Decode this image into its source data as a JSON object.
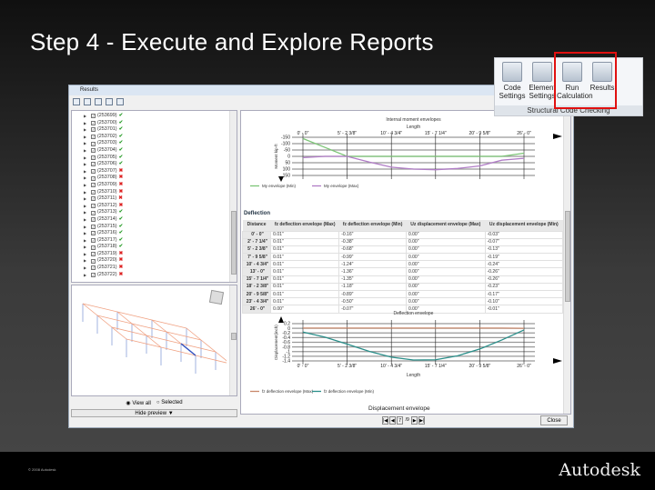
{
  "slide": {
    "title": "Step  4 -  Execute and Explore Reports",
    "copyright": "© 2008 Autodesk",
    "logo": "Autodesk"
  },
  "ribbon": {
    "buttons": [
      {
        "label": "Code Settings"
      },
      {
        "label": "Element Settings"
      },
      {
        "label": "Run Calculation",
        "highlighted": true
      },
      {
        "label": "Results",
        "highlighted": true
      }
    ],
    "group": "Structural Code Checking",
    "highlight_color": "#e01010"
  },
  "window": {
    "title": "Results",
    "close_label": "Close",
    "page_current": "7",
    "page_total": "/9",
    "tree": [
      {
        "id": "(253699)",
        "ok": true
      },
      {
        "id": "(253700)",
        "ok": true
      },
      {
        "id": "(253701)",
        "ok": true
      },
      {
        "id": "(253702)",
        "ok": true
      },
      {
        "id": "(253703)",
        "ok": true
      },
      {
        "id": "(253704)",
        "ok": true
      },
      {
        "id": "(253705)",
        "ok": true
      },
      {
        "id": "(253706)",
        "ok": true
      },
      {
        "id": "(253707)",
        "ok": false
      },
      {
        "id": "(253708)",
        "ok": false
      },
      {
        "id": "(253709)",
        "ok": false
      },
      {
        "id": "(253710)",
        "ok": false
      },
      {
        "id": "(253711)",
        "ok": false
      },
      {
        "id": "(253712)",
        "ok": false
      },
      {
        "id": "(253713)",
        "ok": true
      },
      {
        "id": "(253714)",
        "ok": true
      },
      {
        "id": "(253715)",
        "ok": true
      },
      {
        "id": "(253716)",
        "ok": true
      },
      {
        "id": "(253717)",
        "ok": true
      },
      {
        "id": "(253718)",
        "ok": true
      },
      {
        "id": "(253719)",
        "ok": false
      },
      {
        "id": "(253720)",
        "ok": false
      },
      {
        "id": "(253721)",
        "ok": false
      },
      {
        "id": "(253722)",
        "ok": false
      }
    ],
    "view_all": "View all",
    "selected": "Selected",
    "hide_preview": "Hide preview ▼",
    "deflection_heading": "Deflection",
    "next_section": "Displacement envelope",
    "table": {
      "headers": [
        "Distance",
        "fz deflection envelope (Max)",
        "fz deflection envelope (Min)",
        "Uz displacement envelope (Max)",
        "Uz displacement envelope (Min)"
      ],
      "rows": [
        [
          "0' - 0\"",
          "0.01\"",
          "-0.16\"",
          "0.00\"",
          "-0.03\""
        ],
        [
          "2' - 7 1/4\"",
          "0.01\"",
          "-0.38\"",
          "0.00\"",
          "-0.07\""
        ],
        [
          "5' - 2 3/8\"",
          "0.01\"",
          "-0.68\"",
          "0.00\"",
          "-0.13\""
        ],
        [
          "7' - 9 5/8\"",
          "0.01\"",
          "-0.99\"",
          "0.00\"",
          "-0.19\""
        ],
        [
          "10' - 4 3/4\"",
          "0.01\"",
          "-1.24\"",
          "0.00\"",
          "-0.24\""
        ],
        [
          "13' - 0\"",
          "0.01\"",
          "-1.36\"",
          "0.00\"",
          "-0.26\""
        ],
        [
          "15' - 7 1/4\"",
          "0.01\"",
          "-1.35\"",
          "0.00\"",
          "-0.26\""
        ],
        [
          "18' - 2 3/8\"",
          "0.01\"",
          "-1.18\"",
          "0.00\"",
          "-0.23\""
        ],
        [
          "20' - 9 5/8\"",
          "0.01\"",
          "-0.89\"",
          "0.00\"",
          "-0.17\""
        ],
        [
          "23' - 4 3/4\"",
          "0.01\"",
          "-0.50\"",
          "0.00\"",
          "-0.10\""
        ],
        [
          "26' - 0\"",
          "0.00\"",
          "-0.07\"",
          "0.00\"",
          "-0.01\""
        ]
      ]
    }
  },
  "chart_data": [
    {
      "type": "line",
      "title": "Internal moment envelopes",
      "xlabel": "Length",
      "ylabel": "Moment kip-ft",
      "xticks": [
        "0' - 0\"",
        "5' - 2 3/8\"",
        "10' - 4 3/4\"",
        "15' - 7 1/4\"",
        "20' - 9 5/8\"",
        "26' - 0\""
      ],
      "yticks": [
        "-150",
        "-100",
        "-50",
        "0",
        "50",
        "100",
        "150"
      ],
      "ylim": [
        -150,
        150
      ],
      "y_inverted": true,
      "x": [
        0,
        2.6,
        5.2,
        7.8,
        10.4,
        13,
        15.6,
        18.2,
        20.8,
        23.4,
        26
      ],
      "series": [
        {
          "name": "My envelope (Min)",
          "color": "#7cc576",
          "values": [
            -140,
            -70,
            0,
            0,
            0,
            0,
            0,
            0,
            0,
            0,
            -25
          ]
        },
        {
          "name": "My envelope (Max)",
          "color": "#b07cc6",
          "values": [
            10,
            0,
            0,
            45,
            85,
            100,
            105,
            95,
            75,
            30,
            15
          ]
        }
      ]
    },
    {
      "type": "line",
      "title": "Deflection envelope",
      "xlabel": "Length",
      "ylabel": "Displacement(inch)",
      "xticks": [
        "0' - 0\"",
        "5' - 2 3/8\"",
        "10' - 4 3/4\"",
        "15' - 7 1/4\"",
        "20' - 9 5/8\"",
        "26' - 0\""
      ],
      "yticks": [
        "0.2",
        "0",
        "-0.2",
        "-0.4",
        "-0.6",
        "-0.8",
        "-1",
        "-1.2",
        "-1.4"
      ],
      "ylim": [
        -1.4,
        0.2
      ],
      "x": [
        0,
        2.6,
        5.2,
        7.8,
        10.4,
        13,
        15.6,
        18.2,
        20.8,
        23.4,
        26
      ],
      "series": [
        {
          "name": "fz deflection envelope (Max)",
          "color": "#c8876a",
          "values": [
            0.01,
            0.01,
            0.01,
            0.01,
            0.01,
            0.01,
            0.01,
            0.01,
            0.01,
            0.01,
            0.0
          ]
        },
        {
          "name": "fz deflection envelope (Min)",
          "color": "#2a8f8a",
          "values": [
            -0.16,
            -0.38,
            -0.68,
            -0.99,
            -1.24,
            -1.36,
            -1.35,
            -1.18,
            -0.89,
            -0.5,
            -0.07
          ]
        }
      ]
    }
  ]
}
